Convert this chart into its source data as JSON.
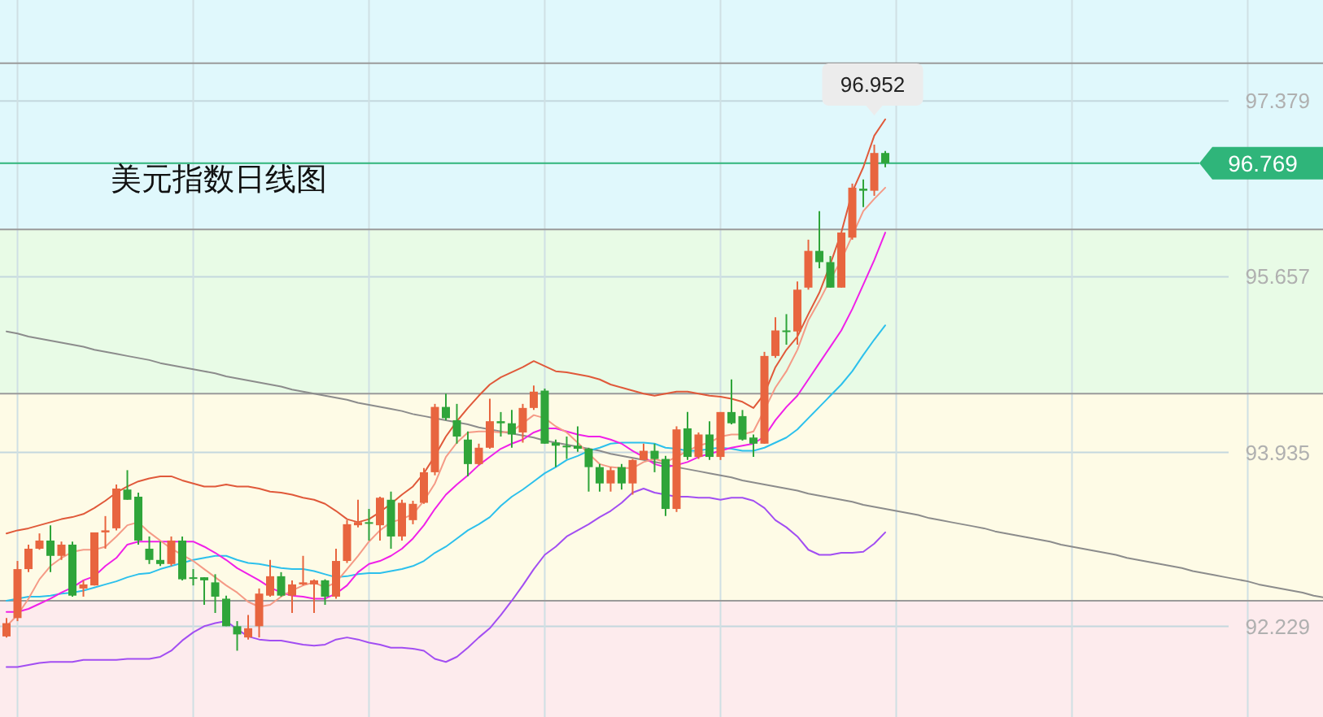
{
  "chart_data": {
    "type": "candlestick",
    "title": "美元指数日线图",
    "categories": [
      null,
      null,
      null,
      null,
      null,
      null,
      null,
      null,
      null,
      null,
      null,
      null,
      null,
      null,
      null,
      null,
      null,
      null,
      null,
      null,
      null,
      null,
      null,
      null,
      null,
      null,
      null,
      null,
      null,
      null,
      null,
      null,
      null,
      null,
      null,
      null,
      null,
      null,
      null,
      null,
      null,
      null,
      null,
      null,
      null,
      null,
      null,
      null,
      null,
      null,
      null,
      null,
      null,
      null,
      null,
      null,
      null,
      null,
      null,
      null,
      null,
      null,
      null,
      null,
      null,
      null,
      null,
      null,
      null,
      null,
      null,
      null,
      null,
      null,
      null,
      null,
      null,
      null,
      null,
      null,
      null,
      null,
      null,
      null,
      null,
      null,
      null,
      null,
      null,
      null,
      null,
      null,
      null,
      null,
      null,
      null,
      null,
      null,
      null,
      null,
      null,
      null,
      null,
      null,
      null,
      null,
      null,
      null,
      null,
      null,
      null,
      null,
      null,
      null,
      null,
      null,
      null,
      null,
      null,
      null,
      null
    ],
    "ohlc": [
      [
        92.13,
        92.31,
        92.12,
        92.26
      ],
      [
        92.31,
        92.87,
        92.28,
        92.79
      ],
      [
        92.79,
        93.03,
        92.76,
        92.99
      ],
      [
        92.99,
        93.14,
        92.98,
        93.07
      ],
      [
        93.07,
        93.22,
        92.76,
        92.92
      ],
      [
        92.92,
        93.06,
        92.88,
        93.03
      ],
      [
        93.03,
        93.06,
        92.52,
        92.53
      ],
      [
        92.6,
        92.68,
        92.52,
        92.64
      ],
      [
        92.63,
        93.15,
        92.63,
        93.15
      ],
      [
        93.15,
        93.31,
        92.99,
        93.17
      ],
      [
        93.19,
        93.62,
        93.17,
        93.58
      ],
      [
        93.57,
        93.76,
        93.47,
        93.47
      ],
      [
        93.5,
        93.54,
        93.03,
        93.07
      ],
      [
        92.99,
        93.11,
        92.84,
        92.88
      ],
      [
        92.88,
        93.06,
        92.82,
        92.84
      ],
      [
        92.84,
        93.11,
        92.82,
        93.07
      ],
      [
        93.07,
        93.11,
        92.68,
        92.69
      ],
      [
        92.71,
        92.79,
        92.63,
        92.7
      ],
      [
        92.71,
        92.71,
        92.44,
        92.68
      ],
      [
        92.66,
        92.74,
        92.36,
        92.52
      ],
      [
        92.5,
        92.53,
        92.23,
        92.23
      ],
      [
        92.23,
        92.28,
        91.99,
        92.15
      ],
      [
        92.12,
        92.34,
        92.1,
        92.21
      ],
      [
        92.23,
        92.6,
        92.12,
        92.55
      ],
      [
        92.53,
        92.88,
        92.52,
        92.72
      ],
      [
        92.72,
        92.76,
        92.52,
        92.53
      ],
      [
        92.53,
        92.68,
        92.36,
        92.64
      ],
      [
        92.64,
        92.92,
        92.63,
        92.66
      ],
      [
        92.64,
        92.69,
        92.36,
        92.68
      ],
      [
        92.68,
        92.69,
        92.44,
        92.52
      ],
      [
        92.52,
        92.99,
        92.5,
        92.87
      ],
      [
        92.87,
        93.27,
        92.85,
        93.23
      ],
      [
        93.22,
        93.47,
        93.2,
        93.25
      ],
      [
        93.25,
        93.38,
        93.07,
        93.24
      ],
      [
        93.22,
        93.5,
        93.07,
        93.49
      ],
      [
        93.47,
        93.55,
        92.99,
        93.11
      ],
      [
        93.11,
        93.47,
        93.07,
        93.44
      ],
      [
        93.27,
        93.46,
        93.23,
        93.43
      ],
      [
        93.44,
        93.78,
        93.43,
        93.74
      ],
      [
        93.74,
        94.41,
        93.71,
        94.38
      ],
      [
        94.38,
        94.51,
        94.25,
        94.27
      ],
      [
        94.25,
        94.41,
        94.02,
        94.09
      ],
      [
        94.06,
        94.14,
        93.7,
        93.82
      ],
      [
        93.82,
        94.02,
        93.81,
        93.98
      ],
      [
        93.98,
        94.46,
        93.97,
        94.24
      ],
      [
        94.24,
        94.33,
        94.09,
        94.22
      ],
      [
        94.22,
        94.35,
        93.98,
        94.11
      ],
      [
        94.13,
        94.41,
        94.03,
        94.37
      ],
      [
        94.37,
        94.59,
        94.35,
        94.53
      ],
      [
        94.54,
        94.56,
        94.02,
        94.02
      ],
      [
        94.03,
        94.06,
        93.79,
        94.0
      ],
      [
        94.0,
        94.09,
        93.87,
        93.99
      ],
      [
        94.0,
        94.19,
        93.94,
        93.97
      ],
      [
        93.97,
        93.98,
        93.55,
        93.79
      ],
      [
        93.79,
        93.82,
        93.55,
        93.63
      ],
      [
        93.63,
        93.79,
        93.55,
        93.76
      ],
      [
        93.79,
        93.82,
        93.57,
        93.63
      ],
      [
        93.63,
        93.87,
        93.52,
        93.86
      ],
      [
        93.86,
        94.02,
        93.86,
        93.95
      ],
      [
        93.95,
        94.02,
        93.74,
        93.87
      ],
      [
        93.87,
        93.9,
        93.31,
        93.38
      ],
      [
        93.38,
        94.19,
        93.35,
        94.16
      ],
      [
        94.17,
        94.33,
        93.86,
        93.89
      ],
      [
        93.89,
        94.13,
        93.87,
        94.11
      ],
      [
        94.11,
        94.24,
        93.86,
        93.89
      ],
      [
        93.89,
        94.33,
        93.86,
        94.33
      ],
      [
        94.33,
        94.65,
        94.21,
        94.22
      ],
      [
        94.29,
        94.35,
        94.05,
        94.06
      ],
      [
        94.08,
        94.11,
        93.89,
        94.02
      ],
      [
        94.02,
        94.92,
        94.02,
        94.88
      ],
      [
        94.88,
        95.26,
        94.86,
        95.13
      ],
      [
        95.13,
        95.29,
        94.99,
        95.12
      ],
      [
        95.12,
        95.61,
        94.99,
        95.53
      ],
      [
        95.55,
        96.02,
        95.53,
        95.91
      ],
      [
        95.91,
        96.3,
        95.74,
        95.8
      ],
      [
        95.8,
        95.86,
        95.55,
        95.55
      ],
      [
        95.55,
        96.09,
        95.55,
        96.09
      ],
      [
        96.04,
        96.57,
        96.02,
        96.53
      ],
      [
        96.52,
        96.61,
        96.34,
        96.5
      ],
      [
        96.5,
        96.952,
        96.45,
        96.87
      ],
      [
        96.87,
        96.89,
        96.73,
        96.769
      ],
      null,
      null,
      null,
      null,
      null,
      null,
      null,
      null,
      null,
      null,
      null,
      null,
      null,
      null,
      null,
      null,
      null,
      null,
      null,
      null,
      null,
      null,
      null,
      null,
      null,
      null,
      null,
      null,
      null,
      null,
      null,
      null,
      null,
      null,
      null,
      null,
      null,
      null,
      null,
      null
    ],
    "series": [
      {
        "type": "line",
        "color": "#8c8c8c",
        "values": [
          95.12,
          95.1,
          95.07,
          95.05,
          95.03,
          95.01,
          94.99,
          94.97,
          94.94,
          94.92,
          94.9,
          94.88,
          94.86,
          94.84,
          94.81,
          94.79,
          94.77,
          94.75,
          94.73,
          94.71,
          94.68,
          94.66,
          94.64,
          94.62,
          94.6,
          94.58,
          94.55,
          94.53,
          94.51,
          94.49,
          94.47,
          94.45,
          94.42,
          94.4,
          94.38,
          94.36,
          94.34,
          94.31,
          94.29,
          94.27,
          94.25,
          94.23,
          94.21,
          94.18,
          94.16,
          94.14,
          94.12,
          94.1,
          94.08,
          94.05,
          94.03,
          94.01,
          93.99,
          93.97,
          93.95,
          93.92,
          93.9,
          93.88,
          93.86,
          93.84,
          93.82,
          93.79,
          93.77,
          93.75,
          93.73,
          93.71,
          93.69,
          93.66,
          93.64,
          93.62,
          93.6,
          93.58,
          93.56,
          93.53,
          93.51,
          93.49,
          93.47,
          93.45,
          93.42,
          93.4,
          93.38,
          93.36,
          93.34,
          93.32,
          93.29,
          93.27,
          93.25,
          93.23,
          93.21,
          93.19,
          93.16,
          93.14,
          93.12,
          93.1,
          93.08,
          93.06,
          93.03,
          93.01,
          92.99,
          92.97,
          92.95,
          92.93,
          92.9,
          92.88,
          92.86,
          92.84,
          92.82,
          92.8,
          92.77,
          92.75,
          92.73,
          92.71,
          92.69,
          92.67,
          92.64,
          92.62,
          92.6,
          92.58,
          92.56,
          92.53,
          92.51
        ]
      },
      {
        "type": "line",
        "color": "#a24ef2",
        "values": [
          91.83,
          91.83,
          91.85,
          91.87,
          91.88,
          91.88,
          91.88,
          91.9,
          91.9,
          91.9,
          91.9,
          91.91,
          91.91,
          91.91,
          91.93,
          91.99,
          92.09,
          92.17,
          92.23,
          92.26,
          92.28,
          92.2,
          92.13,
          92.1,
          92.09,
          92.09,
          92.07,
          92.05,
          92.04,
          92.05,
          92.1,
          92.12,
          92.1,
          92.07,
          92.05,
          92.02,
          92.02,
          92.01,
          91.99,
          91.91,
          91.88,
          91.93,
          92.02,
          92.12,
          92.21,
          92.34,
          92.48,
          92.63,
          92.79,
          92.93,
          93.01,
          93.11,
          93.17,
          93.23,
          93.3,
          93.36,
          93.44,
          93.54,
          93.58,
          93.54,
          93.52,
          93.5,
          93.5,
          93.49,
          93.49,
          93.47,
          93.49,
          93.49,
          93.46,
          93.39,
          93.27,
          93.2,
          93.11,
          92.98,
          92.93,
          92.93,
          92.95,
          92.95,
          92.96,
          93.04,
          93.15,
          null,
          null,
          null,
          null,
          null,
          null,
          null,
          null,
          null,
          null,
          null,
          null,
          null,
          null,
          null,
          null,
          null,
          null,
          null,
          null,
          null,
          null,
          null,
          null,
          null,
          null,
          null,
          null,
          null,
          null,
          null,
          null,
          null,
          null,
          null,
          null,
          null,
          null,
          null,
          null
        ]
      },
      {
        "type": "line",
        "color": "#2cc0ec",
        "values": [
          92.48,
          92.5,
          92.52,
          92.52,
          92.53,
          92.55,
          92.56,
          92.58,
          92.61,
          92.64,
          92.67,
          92.71,
          92.74,
          92.75,
          92.79,
          92.82,
          92.85,
          92.88,
          92.9,
          92.92,
          92.92,
          92.88,
          92.85,
          92.84,
          92.82,
          92.8,
          92.79,
          92.79,
          92.77,
          92.74,
          92.71,
          92.72,
          92.74,
          92.75,
          92.75,
          92.77,
          92.79,
          92.82,
          92.87,
          92.95,
          93.01,
          93.09,
          93.17,
          93.23,
          93.3,
          93.41,
          93.5,
          93.57,
          93.65,
          93.73,
          93.79,
          93.86,
          93.9,
          93.95,
          93.98,
          94.02,
          94.03,
          94.03,
          94.03,
          94.02,
          93.98,
          93.97,
          93.95,
          93.95,
          93.97,
          93.98,
          93.97,
          93.95,
          93.95,
          93.98,
          94.03,
          94.08,
          94.16,
          94.27,
          94.38,
          94.49,
          94.6,
          94.73,
          94.89,
          95.04,
          95.18,
          null,
          null,
          null,
          null,
          null,
          null,
          null,
          null,
          null,
          null,
          null,
          null,
          null,
          null,
          null,
          null,
          null,
          null,
          null,
          null,
          null,
          null,
          null,
          null,
          null,
          null,
          null,
          null,
          null,
          null,
          null,
          null,
          null,
          null,
          null,
          null,
          null,
          null,
          null,
          null
        ]
      },
      {
        "type": "line",
        "color": "#f020e8",
        "values": [
          92.37,
          92.37,
          92.4,
          92.45,
          92.5,
          92.56,
          92.61,
          92.68,
          92.72,
          92.82,
          92.9,
          93.03,
          93.06,
          93.06,
          93.06,
          93.06,
          93.06,
          93.06,
          93.01,
          92.95,
          92.88,
          92.8,
          92.74,
          92.68,
          92.61,
          92.56,
          92.53,
          92.52,
          92.5,
          92.5,
          92.55,
          92.63,
          92.76,
          92.84,
          92.87,
          92.92,
          92.99,
          93.09,
          93.22,
          93.38,
          93.52,
          93.62,
          93.71,
          93.81,
          93.89,
          93.97,
          94.02,
          94.06,
          94.13,
          94.17,
          94.17,
          94.14,
          94.11,
          94.09,
          94.09,
          94.06,
          94.02,
          93.95,
          93.89,
          93.82,
          93.79,
          93.81,
          93.84,
          93.89,
          93.92,
          93.95,
          93.98,
          94.0,
          94.02,
          94.09,
          94.25,
          94.38,
          94.49,
          94.65,
          94.81,
          94.97,
          95.13,
          95.34,
          95.58,
          95.82,
          96.09,
          null,
          null,
          null,
          null,
          null,
          null,
          null,
          null,
          null,
          null,
          null,
          null,
          null,
          null,
          null,
          null,
          null,
          null,
          null,
          null,
          null,
          null,
          null,
          null,
          null,
          null,
          null,
          null,
          null,
          null,
          null,
          null,
          null,
          null,
          null,
          null,
          null,
          null,
          null,
          null
        ]
      },
      {
        "type": "line",
        "color": "#f59a86",
        "values": [
          92.23,
          92.34,
          92.5,
          92.69,
          92.82,
          92.9,
          92.96,
          92.98,
          92.98,
          93.01,
          93.11,
          93.22,
          93.25,
          93.15,
          93.07,
          92.99,
          92.93,
          92.87,
          92.79,
          92.71,
          92.63,
          92.56,
          92.47,
          92.42,
          92.44,
          92.52,
          92.58,
          92.63,
          92.66,
          92.61,
          92.66,
          92.79,
          92.92,
          93.06,
          93.17,
          93.25,
          93.28,
          93.33,
          93.46,
          93.63,
          93.89,
          94.03,
          94.13,
          94.14,
          94.14,
          94.13,
          94.14,
          94.22,
          94.3,
          94.27,
          94.19,
          94.13,
          94.03,
          93.92,
          93.82,
          93.79,
          93.78,
          93.78,
          93.84,
          93.87,
          93.84,
          93.89,
          93.95,
          94.0,
          94.03,
          94.09,
          94.11,
          94.11,
          94.14,
          94.35,
          94.57,
          94.73,
          94.94,
          95.23,
          95.42,
          95.63,
          95.82,
          96.06,
          96.3,
          96.42,
          96.53,
          null,
          null,
          null,
          null,
          null,
          null,
          null,
          null,
          null,
          null,
          null,
          null,
          null,
          null,
          null,
          null,
          null,
          null,
          null,
          null,
          null,
          null,
          null,
          null,
          null,
          null,
          null,
          null,
          null,
          null,
          null,
          null,
          null,
          null,
          null,
          null,
          null,
          null,
          null,
          null
        ]
      },
      {
        "type": "line",
        "color": "#e0593a",
        "values": [
          93.14,
          93.17,
          93.19,
          93.22,
          93.25,
          93.28,
          93.3,
          93.33,
          93.39,
          93.46,
          93.54,
          93.6,
          93.65,
          93.68,
          93.7,
          93.7,
          93.66,
          93.63,
          93.6,
          93.6,
          93.62,
          93.6,
          93.6,
          93.58,
          93.55,
          93.54,
          93.52,
          93.49,
          93.47,
          93.43,
          93.36,
          93.28,
          93.25,
          93.28,
          93.35,
          93.43,
          93.52,
          93.6,
          93.73,
          93.9,
          94.09,
          94.24,
          94.37,
          94.49,
          94.6,
          94.67,
          94.72,
          94.77,
          94.83,
          94.78,
          94.73,
          94.72,
          94.7,
          94.68,
          94.65,
          94.6,
          94.57,
          94.54,
          94.51,
          94.49,
          94.51,
          94.53,
          94.53,
          94.51,
          94.49,
          94.48,
          94.46,
          94.43,
          94.37,
          94.51,
          94.77,
          94.94,
          95.07,
          95.29,
          95.5,
          95.78,
          96.09,
          96.49,
          96.73,
          97.04,
          97.2,
          null,
          null,
          null,
          null,
          null,
          null,
          null,
          null,
          null,
          null,
          null,
          null,
          null,
          null,
          null,
          null,
          null,
          null,
          null,
          null,
          null,
          null,
          null,
          null,
          null,
          null,
          null,
          null,
          null,
          null,
          null,
          null,
          null,
          null,
          null,
          null,
          null,
          null,
          null,
          null
        ]
      }
    ],
    "ylim": [
      91.34,
      98.37
    ],
    "yticks": [
      92.229,
      93.935,
      95.657,
      97.379
    ],
    "grid": true,
    "tick_labels": "y",
    "bands": [
      {
        "axis": "y",
        "from": 96.12,
        "to": 98.37,
        "color": "#e0f8fc"
      },
      {
        "axis": "y",
        "from": 94.51,
        "to": 96.12,
        "color": "#e8fbe6"
      },
      {
        "axis": "y",
        "from": 92.48,
        "to": 94.51,
        "color": "#fefbe6"
      },
      {
        "axis": "y",
        "from": 91.34,
        "to": 92.48,
        "color": "#fdebed"
      }
    ],
    "ref_lines": [
      {
        "axis": "y",
        "value": 97.75,
        "color": "#9a9a9a"
      },
      {
        "axis": "y",
        "value": 96.12,
        "color": "#9a9a9a"
      },
      {
        "axis": "y",
        "value": 94.51,
        "color": "#9a9a9a"
      },
      {
        "axis": "y",
        "value": 92.48,
        "color": "#9a9a9a"
      },
      {
        "axis": "y",
        "value": 96.769,
        "label": "96.769",
        "color": "#2fb57a"
      }
    ],
    "annotations": [
      {
        "text": "96.952",
        "y": 96.952
      }
    ]
  }
}
